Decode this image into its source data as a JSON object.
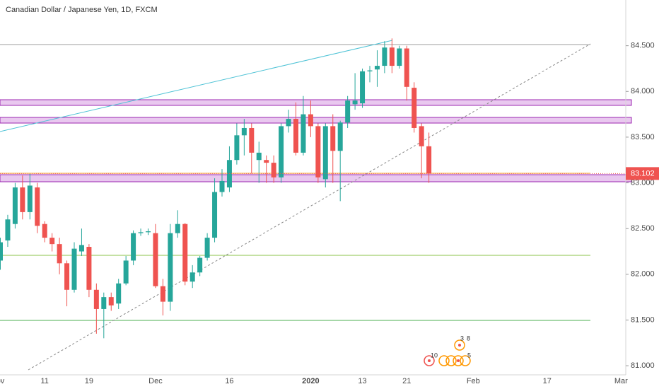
{
  "chart_data": {
    "type": "candlestick",
    "title": "Canadian Dollar / Japanese Yen, 1D, FXCM",
    "categories": [
      "ov",
      null,
      null,
      null,
      null,
      null,
      "11",
      null,
      null,
      null,
      null,
      null,
      "19",
      null,
      null,
      null,
      null,
      null,
      null,
      null,
      null,
      "Dec",
      null,
      null,
      null,
      null,
      null,
      null,
      null,
      null,
      null,
      "16",
      null,
      null,
      null,
      null,
      null,
      null,
      null,
      null,
      null,
      null,
      "2020",
      null,
      null,
      null,
      null,
      null,
      null,
      "13",
      null,
      null,
      null,
      null,
      null,
      "21",
      null,
      null,
      null,
      null,
      null,
      null,
      null,
      null,
      "Feb",
      null,
      null,
      null,
      null,
      null,
      null,
      null,
      null,
      null,
      "17",
      null,
      null,
      null,
      null,
      null,
      null,
      null,
      null,
      null,
      "Mar"
    ],
    "open": [
      82.15,
      82.37,
      82.55,
      82.95,
      82.68,
      82.95,
      82.55,
      82.4,
      82.33,
      82.12,
      81.83,
      82.25,
      82.3,
      81.83,
      81.62,
      81.75,
      81.68,
      81.9,
      82.15,
      82.45,
      82.46,
      82.45,
      81.87,
      81.7,
      82.45,
      82.55,
      81.92,
      82.02,
      82.18,
      82.4,
      82.9,
      82.95,
      83.25,
      83.52,
      83.6,
      83.25,
      83.25,
      83.22,
      83.06,
      83.62,
      83.7,
      83.33,
      83.75,
      83.62,
      83.04,
      83.62,
      83.35,
      83.66,
      83.86,
      83.87,
      84.22,
      84.24,
      84.28,
      84.48,
      84.28,
      84.47,
      84.04,
      83.62,
      83.4,
      null,
      null,
      null,
      null,
      null,
      null,
      null,
      null,
      null,
      null,
      null,
      null,
      null,
      null,
      null,
      null,
      null,
      null,
      null,
      null,
      null,
      null,
      null,
      null,
      null,
      null
    ],
    "high": [
      82.4,
      82.65,
      83.0,
      83.08,
      83.1,
      83.0,
      82.58,
      82.45,
      82.4,
      82.15,
      82.35,
      82.5,
      82.33,
      81.9,
      81.8,
      81.8,
      81.95,
      82.2,
      82.48,
      82.5,
      82.5,
      82.55,
      81.95,
      82.55,
      82.7,
      82.56,
      82.1,
      82.2,
      82.45,
      83.05,
      83.15,
      83.4,
      83.65,
      83.7,
      83.65,
      83.45,
      83.3,
      83.3,
      83.65,
      83.8,
      83.88,
      83.95,
      83.9,
      83.65,
      83.65,
      83.75,
      83.68,
      83.95,
      84.2,
      84.25,
      84.28,
      84.45,
      84.55,
      84.58,
      84.5,
      84.5,
      84.1,
      83.65,
      83.55,
      null,
      null,
      null,
      null,
      null,
      null,
      null,
      null,
      null,
      null,
      null,
      null,
      null,
      null,
      null,
      null,
      null,
      null,
      null,
      null,
      null,
      null,
      null,
      null,
      null,
      null
    ],
    "low": [
      82.05,
      82.3,
      82.5,
      82.6,
      82.6,
      82.45,
      82.35,
      82.25,
      82.0,
      81.65,
      81.8,
      82.2,
      81.75,
      81.35,
      81.3,
      81.6,
      81.62,
      81.88,
      82.1,
      82.42,
      82.43,
      81.85,
      81.55,
      81.6,
      82.4,
      81.88,
      81.85,
      81.98,
      82.15,
      82.35,
      82.85,
      82.9,
      83.2,
      83.3,
      83.1,
      83.0,
      83.0,
      83.0,
      83.0,
      83.55,
      83.3,
      83.3,
      83.5,
      83.0,
      82.95,
      83.0,
      82.8,
      83.6,
      83.8,
      83.82,
      84.1,
      84.05,
      84.2,
      84.2,
      84.25,
      83.9,
      83.55,
      83.05,
      83.0,
      null,
      null,
      null,
      null,
      null,
      null,
      null,
      null,
      null,
      null,
      null,
      null,
      null,
      null,
      null,
      null,
      null,
      null,
      null,
      null,
      null,
      null,
      null,
      null,
      null,
      null
    ],
    "close": [
      82.35,
      82.6,
      82.95,
      82.68,
      82.97,
      82.53,
      82.4,
      82.33,
      82.12,
      81.83,
      82.28,
      82.32,
      81.83,
      81.62,
      81.75,
      81.66,
      81.9,
      82.15,
      82.45,
      82.46,
      82.47,
      81.87,
      81.7,
      82.45,
      82.55,
      81.92,
      82.02,
      82.18,
      82.4,
      82.9,
      83.02,
      83.25,
      83.52,
      83.6,
      83.33,
      83.33,
      83.22,
      83.06,
      83.62,
      83.7,
      83.33,
      83.75,
      83.62,
      83.06,
      83.62,
      83.35,
      83.66,
      83.9,
      83.9,
      84.22,
      84.23,
      84.28,
      84.48,
      84.28,
      84.47,
      84.05,
      83.6,
      83.4,
      83.1,
      null,
      null,
      null,
      null,
      null,
      null,
      null,
      null,
      null,
      null,
      null,
      null,
      null,
      null,
      null,
      null,
      null,
      null,
      null,
      null,
      null,
      null,
      null,
      null,
      null,
      null
    ],
    "up_color": "#26a69a",
    "down_color": "#ef5350",
    "ylim": [
      80.9,
      85.0
    ],
    "yticks": [
      {
        "value": 84.5,
        "label": "84.500"
      },
      {
        "value": 84,
        "label": "84.000"
      },
      {
        "value": 83.5,
        "label": "83.500"
      },
      {
        "value": 83,
        "label": "83.000"
      },
      {
        "value": 82.5,
        "label": "82.500"
      },
      {
        "value": 82,
        "label": "82.000"
      },
      {
        "value": 81.5,
        "label": "81.500"
      },
      {
        "value": 81,
        "label": "81.000"
      }
    ],
    "last_price": 83.102,
    "events": [
      "10",
      "3",
      "8",
      "5"
    ]
  }
}
